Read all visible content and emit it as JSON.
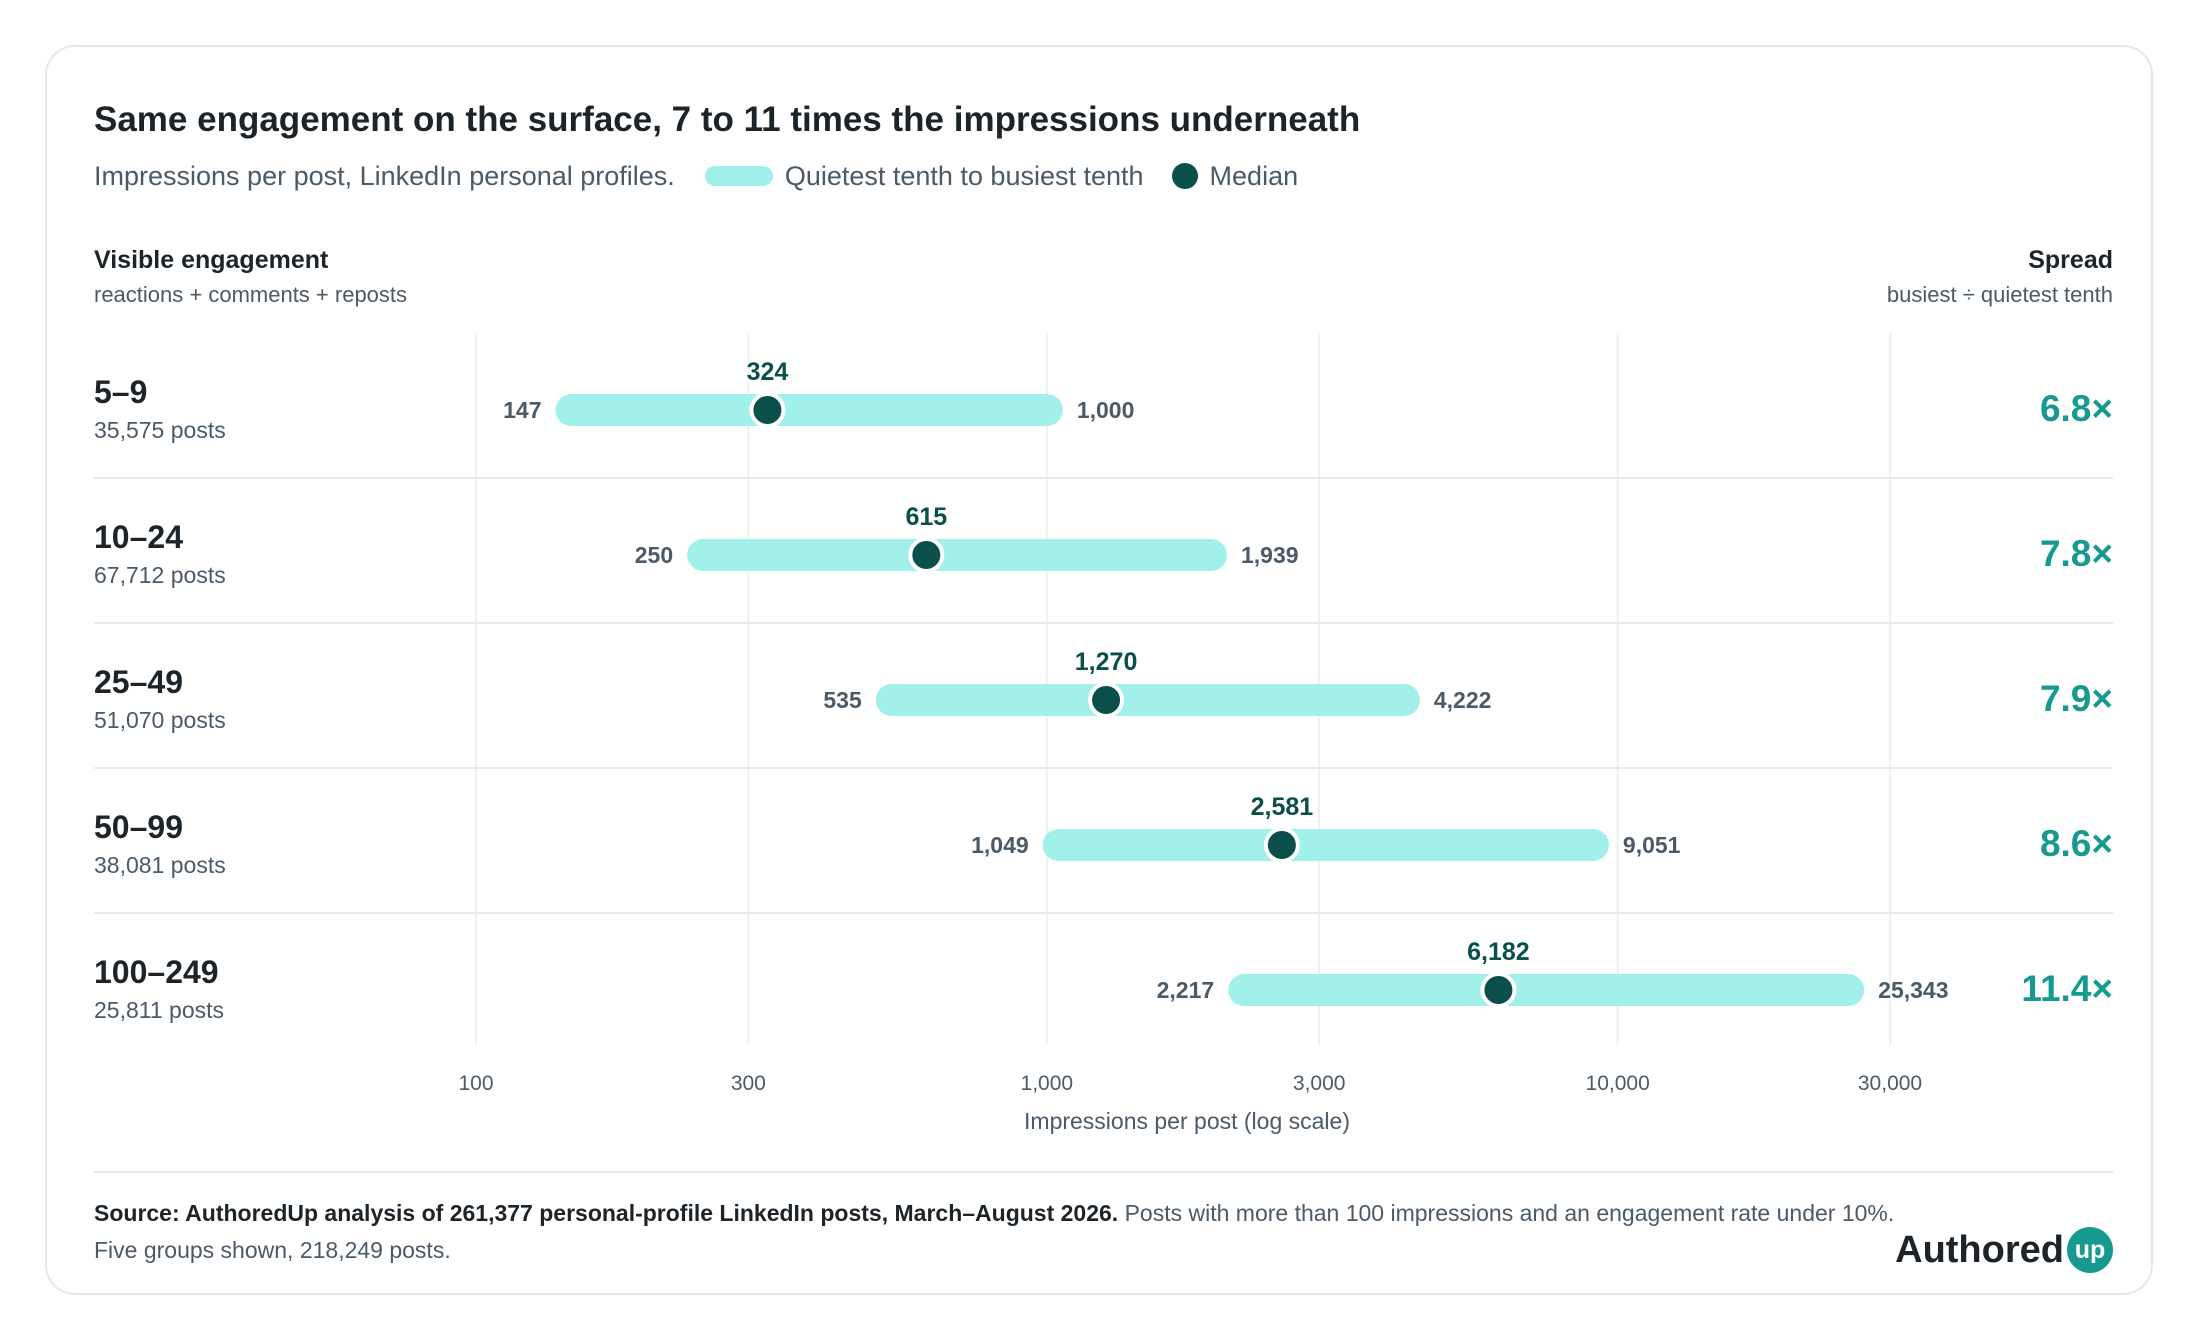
{
  "title": "Same engagement on the surface, 7 to 11 times the impressions underneath",
  "subtitle": "Impressions per post, LinkedIn personal profiles.",
  "legend": {
    "range": "Quietest tenth to busiest tenth",
    "median": "Median"
  },
  "columns": {
    "left_title": "Visible engagement",
    "left_sub": "reactions + comments + reposts",
    "right_title": "Spread",
    "right_sub": "busiest ÷ quietest tenth"
  },
  "rows": [
    {
      "label": "5–9",
      "posts": "35,575 posts",
      "spread": "6.8×"
    },
    {
      "label": "10–24",
      "posts": "67,712 posts",
      "spread": "7.8×"
    },
    {
      "label": "25–49",
      "posts": "51,070 posts",
      "spread": "7.9×"
    },
    {
      "label": "50–99",
      "posts": "38,081 posts",
      "spread": "8.6×"
    },
    {
      "label": "100–249",
      "posts": "25,811 posts",
      "spread": "11.4×"
    }
  ],
  "chart_data": {
    "type": "range-dot",
    "x_scale": "log",
    "xlabel": "Impressions per post (log scale)",
    "xlim": [
      100,
      40000
    ],
    "x_ticks": [
      100,
      300,
      1000,
      3000,
      10000,
      30000
    ],
    "x_tick_labels": [
      "100",
      "300",
      "1,000",
      "3,000",
      "10,000",
      "30,000"
    ],
    "categories": [
      "5–9",
      "10–24",
      "25–49",
      "50–99",
      "100–249"
    ],
    "low": [
      147,
      250,
      535,
      1049,
      2217
    ],
    "median": [
      324,
      615,
      1270,
      2581,
      6182
    ],
    "high": [
      1000,
      1939,
      4222,
      9051,
      25343
    ],
    "low_labels": [
      "147",
      "250",
      "535",
      "1,049",
      "2,217"
    ],
    "median_labels": [
      "324",
      "615",
      "1,270",
      "2,581",
      "6,182"
    ],
    "high_labels": [
      "1,000",
      "1,939",
      "4,222",
      "9,051",
      "25,343"
    ],
    "colors": {
      "range": "#a1f0ea",
      "median": "#0b4f4b",
      "spread": "#169a8f"
    },
    "grid": true
  },
  "footer": {
    "source_bold": "Source: AuthoredUp analysis of 261,377 personal-profile LinkedIn posts, March–August 2026.",
    "source_rest": " Posts with more than 100 impressions and an engagement rate under 10%.",
    "note": "Five groups shown, 218,249 posts.",
    "logo_text": "Authored",
    "logo_badge": "up"
  }
}
